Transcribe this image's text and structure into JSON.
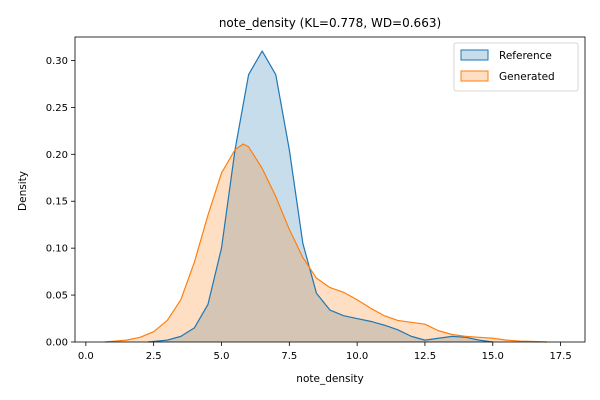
{
  "chart_data": {
    "type": "area",
    "title": "note_density (KL=0.778, WD=0.663)",
    "xlabel": "note_density",
    "ylabel": "Density",
    "xlim": [
      -0.4,
      18.4
    ],
    "ylim": [
      0,
      0.325
    ],
    "xticks": [
      0.0,
      2.5,
      5.0,
      7.5,
      10.0,
      12.5,
      15.0,
      17.5
    ],
    "xtick_labels": [
      "0.0",
      "2.5",
      "5.0",
      "7.5",
      "10.0",
      "12.5",
      "15.0",
      "17.5"
    ],
    "yticks": [
      0.0,
      0.05,
      0.1,
      0.15,
      0.2,
      0.25,
      0.3
    ],
    "ytick_labels": [
      "0.00",
      "0.05",
      "0.10",
      "0.15",
      "0.20",
      "0.25",
      "0.30"
    ],
    "grid": false,
    "legend_position": "top-right",
    "series": [
      {
        "name": "Reference",
        "color": "#1f77b4",
        "fill_opacity": 0.25,
        "x": [
          2.3,
          3.0,
          3.5,
          4.0,
          4.5,
          5.0,
          5.5,
          6.0,
          6.5,
          7.0,
          7.5,
          8.0,
          8.5,
          9.0,
          9.5,
          10.0,
          10.5,
          11.0,
          11.5,
          12.0,
          12.5,
          13.0,
          13.5,
          14.0,
          14.5,
          15.0
        ],
        "y": [
          0.0,
          0.002,
          0.006,
          0.015,
          0.04,
          0.1,
          0.205,
          0.285,
          0.31,
          0.285,
          0.205,
          0.105,
          0.052,
          0.034,
          0.028,
          0.025,
          0.022,
          0.018,
          0.013,
          0.006,
          0.002,
          0.004,
          0.006,
          0.005,
          0.002,
          0.0
        ]
      },
      {
        "name": "Generated",
        "color": "#ff7f0e",
        "fill_opacity": 0.25,
        "x": [
          0.7,
          1.5,
          2.0,
          2.5,
          3.0,
          3.5,
          4.0,
          4.5,
          5.0,
          5.5,
          5.8,
          6.0,
          6.5,
          7.0,
          7.5,
          8.0,
          8.5,
          9.0,
          9.5,
          10.0,
          10.5,
          11.0,
          11.5,
          12.0,
          12.5,
          13.0,
          13.5,
          14.0,
          14.5,
          15.0,
          15.5,
          16.0,
          16.5,
          17.0
        ],
        "y": [
          0.0,
          0.002,
          0.005,
          0.011,
          0.023,
          0.045,
          0.085,
          0.135,
          0.18,
          0.205,
          0.211,
          0.208,
          0.185,
          0.155,
          0.12,
          0.09,
          0.068,
          0.058,
          0.053,
          0.045,
          0.036,
          0.028,
          0.023,
          0.021,
          0.019,
          0.012,
          0.008,
          0.006,
          0.005,
          0.004,
          0.002,
          0.001,
          0.0005,
          0.0
        ]
      }
    ]
  }
}
